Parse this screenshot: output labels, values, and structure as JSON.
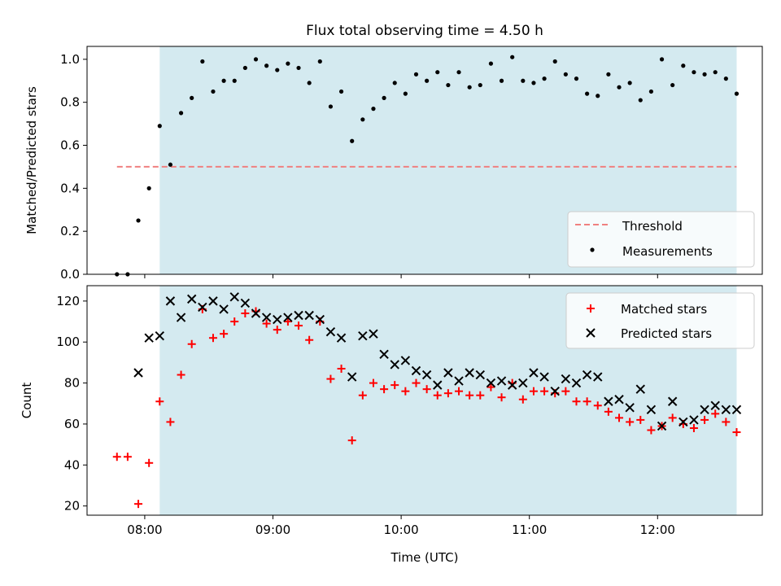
{
  "figure": {
    "title": "Flux total observing time = 4.50 h",
    "xlabel": "Time (UTC)"
  },
  "colors": {
    "observing_span": "#d4eaf0",
    "threshold": "#f08080",
    "measurements": "#000000",
    "matched": "#ff0000",
    "predicted": "#000000"
  },
  "chart_data": [
    {
      "type": "scatter",
      "panel": "top",
      "ylabel": "Matched/Predicted stars",
      "xlim": [
        "07:33",
        "12:49"
      ],
      "ylim": [
        0,
        1.06
      ],
      "x_ticks": [
        "08:00",
        "09:00",
        "10:00",
        "11:00",
        "12:00"
      ],
      "y_ticks": [
        "0.0",
        "0.2",
        "0.4",
        "0.6",
        "0.8",
        "1.0"
      ],
      "x_tick_labels_shown": false,
      "observing_span": [
        "08:07",
        "12:37"
      ],
      "legend": {
        "placement": "lower right",
        "entries": [
          "Threshold",
          "Measurements"
        ]
      },
      "threshold": {
        "name": "Threshold",
        "value": 0.5,
        "x_range": [
          "07:47",
          "12:37"
        ],
        "style": "dashed"
      },
      "series": [
        {
          "name": "Measurements",
          "marker": "dot",
          "points": [
            [
              "07:47",
              0.0
            ],
            [
              "07:52",
              0.0
            ],
            [
              "07:57",
              0.25
            ],
            [
              "08:02",
              0.4
            ],
            [
              "08:07",
              0.69
            ],
            [
              "08:12",
              0.51
            ],
            [
              "08:17",
              0.75
            ],
            [
              "08:22",
              0.82
            ],
            [
              "08:27",
              0.99
            ],
            [
              "08:32",
              0.85
            ],
            [
              "08:37",
              0.9
            ],
            [
              "08:42",
              0.9
            ],
            [
              "08:47",
              0.96
            ],
            [
              "08:52",
              1.0
            ],
            [
              "08:57",
              0.97
            ],
            [
              "09:02",
              0.95
            ],
            [
              "09:07",
              0.98
            ],
            [
              "09:12",
              0.96
            ],
            [
              "09:17",
              0.89
            ],
            [
              "09:22",
              0.99
            ],
            [
              "09:27",
              0.78
            ],
            [
              "09:32",
              0.85
            ],
            [
              "09:37",
              0.62
            ],
            [
              "09:42",
              0.72
            ],
            [
              "09:47",
              0.77
            ],
            [
              "09:52",
              0.82
            ],
            [
              "09:57",
              0.89
            ],
            [
              "10:02",
              0.84
            ],
            [
              "10:07",
              0.93
            ],
            [
              "10:12",
              0.9
            ],
            [
              "10:17",
              0.94
            ],
            [
              "10:22",
              0.88
            ],
            [
              "10:27",
              0.94
            ],
            [
              "10:32",
              0.87
            ],
            [
              "10:37",
              0.88
            ],
            [
              "10:42",
              0.98
            ],
            [
              "10:47",
              0.9
            ],
            [
              "10:52",
              1.01
            ],
            [
              "10:57",
              0.9
            ],
            [
              "11:02",
              0.89
            ],
            [
              "11:07",
              0.91
            ],
            [
              "11:12",
              0.99
            ],
            [
              "11:17",
              0.93
            ],
            [
              "11:22",
              0.91
            ],
            [
              "11:27",
              0.84
            ],
            [
              "11:32",
              0.83
            ],
            [
              "11:37",
              0.93
            ],
            [
              "11:42",
              0.87
            ],
            [
              "11:47",
              0.89
            ],
            [
              "11:52",
              0.81
            ],
            [
              "11:57",
              0.85
            ],
            [
              "12:02",
              1.0
            ],
            [
              "12:07",
              0.88
            ],
            [
              "12:12",
              0.97
            ],
            [
              "12:17",
              0.94
            ],
            [
              "12:22",
              0.93
            ],
            [
              "12:27",
              0.94
            ],
            [
              "12:32",
              0.91
            ],
            [
              "12:37",
              0.84
            ]
          ]
        }
      ]
    },
    {
      "type": "scatter",
      "panel": "bottom",
      "ylabel": "Count",
      "xlim": [
        "07:33",
        "12:49"
      ],
      "ylim": [
        15.5,
        127.5
      ],
      "x_ticks": [
        "08:00",
        "09:00",
        "10:00",
        "11:00",
        "12:00"
      ],
      "y_ticks": [
        "20",
        "40",
        "60",
        "80",
        "100",
        "120"
      ],
      "observing_span": [
        "08:07",
        "12:37"
      ],
      "legend": {
        "placement": "upper right",
        "entries": [
          "Matched stars",
          "Predicted stars"
        ]
      },
      "series": [
        {
          "name": "Matched stars",
          "marker": "plus",
          "points": [
            [
              "07:47",
              44
            ],
            [
              "07:52",
              44
            ],
            [
              "07:57",
              21
            ],
            [
              "08:02",
              41
            ],
            [
              "08:07",
              71
            ],
            [
              "08:12",
              61
            ],
            [
              "08:17",
              84
            ],
            [
              "08:22",
              99
            ],
            [
              "08:27",
              116
            ],
            [
              "08:32",
              102
            ],
            [
              "08:37",
              104
            ],
            [
              "08:42",
              110
            ],
            [
              "08:47",
              114
            ],
            [
              "08:52",
              115
            ],
            [
              "08:57",
              109
            ],
            [
              "09:02",
              106
            ],
            [
              "09:07",
              110
            ],
            [
              "09:12",
              108
            ],
            [
              "09:17",
              101
            ],
            [
              "09:22",
              110
            ],
            [
              "09:27",
              82
            ],
            [
              "09:32",
              87
            ],
            [
              "09:37",
              52
            ],
            [
              "09:42",
              74
            ],
            [
              "09:47",
              80
            ],
            [
              "09:52",
              77
            ],
            [
              "09:57",
              79
            ],
            [
              "10:02",
              76
            ],
            [
              "10:07",
              80
            ],
            [
              "10:12",
              77
            ],
            [
              "10:17",
              74
            ],
            [
              "10:22",
              75
            ],
            [
              "10:27",
              76
            ],
            [
              "10:32",
              74
            ],
            [
              "10:37",
              74
            ],
            [
              "10:42",
              78
            ],
            [
              "10:47",
              73
            ],
            [
              "10:52",
              80
            ],
            [
              "10:57",
              72
            ],
            [
              "11:02",
              76
            ],
            [
              "11:07",
              76
            ],
            [
              "11:12",
              75
            ],
            [
              "11:17",
              76
            ],
            [
              "11:22",
              71
            ],
            [
              "11:27",
              71
            ],
            [
              "11:32",
              69
            ],
            [
              "11:37",
              66
            ],
            [
              "11:42",
              63
            ],
            [
              "11:47",
              61
            ],
            [
              "11:52",
              62
            ],
            [
              "11:57",
              57
            ],
            [
              "12:02",
              59
            ],
            [
              "12:07",
              63
            ],
            [
              "12:12",
              60
            ],
            [
              "12:17",
              58
            ],
            [
              "12:22",
              62
            ],
            [
              "12:27",
              65
            ],
            [
              "12:32",
              61
            ],
            [
              "12:37",
              56
            ]
          ]
        },
        {
          "name": "Predicted stars",
          "marker": "x",
          "points": [
            [
              "07:57",
              85
            ],
            [
              "08:02",
              102
            ],
            [
              "08:07",
              103
            ],
            [
              "08:12",
              120
            ],
            [
              "08:17",
              112
            ],
            [
              "08:22",
              121
            ],
            [
              "08:27",
              117
            ],
            [
              "08:32",
              120
            ],
            [
              "08:37",
              116
            ],
            [
              "08:42",
              122
            ],
            [
              "08:47",
              119
            ],
            [
              "08:52",
              114
            ],
            [
              "08:57",
              112
            ],
            [
              "09:02",
              111
            ],
            [
              "09:07",
              112
            ],
            [
              "09:12",
              113
            ],
            [
              "09:17",
              113
            ],
            [
              "09:22",
              111
            ],
            [
              "09:27",
              105
            ],
            [
              "09:32",
              102
            ],
            [
              "09:37",
              83
            ],
            [
              "09:42",
              103
            ],
            [
              "09:47",
              104
            ],
            [
              "09:52",
              94
            ],
            [
              "09:57",
              89
            ],
            [
              "10:02",
              91
            ],
            [
              "10:07",
              86
            ],
            [
              "10:12",
              84
            ],
            [
              "10:17",
              79
            ],
            [
              "10:22",
              85
            ],
            [
              "10:27",
              81
            ],
            [
              "10:32",
              85
            ],
            [
              "10:37",
              84
            ],
            [
              "10:42",
              80
            ],
            [
              "10:47",
              81
            ],
            [
              "10:52",
              79
            ],
            [
              "10:57",
              80
            ],
            [
              "11:02",
              85
            ],
            [
              "11:07",
              83
            ],
            [
              "11:12",
              76
            ],
            [
              "11:17",
              82
            ],
            [
              "11:22",
              80
            ],
            [
              "11:27",
              84
            ],
            [
              "11:32",
              83
            ],
            [
              "11:37",
              71
            ],
            [
              "11:42",
              72
            ],
            [
              "11:47",
              68
            ],
            [
              "11:52",
              77
            ],
            [
              "11:57",
              67
            ],
            [
              "12:02",
              59
            ],
            [
              "12:07",
              71
            ],
            [
              "12:12",
              61
            ],
            [
              "12:17",
              62
            ],
            [
              "12:22",
              67
            ],
            [
              "12:27",
              69
            ],
            [
              "12:32",
              67
            ],
            [
              "12:37",
              67
            ]
          ]
        }
      ]
    }
  ]
}
